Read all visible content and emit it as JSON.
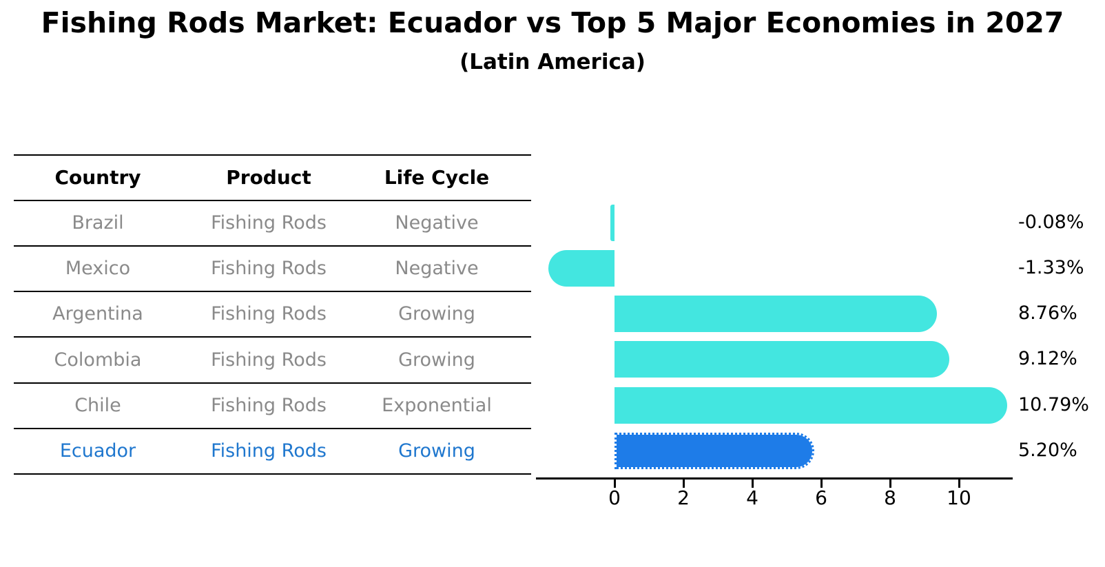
{
  "title": "Fishing Rods Market: Ecuador vs Top 5 Major Economies in 2027",
  "subtitle": "(Latin America)",
  "colors": {
    "bar": "#43e6e0",
    "highlight_bar": "#1e7ce8",
    "highlight_text": "#1f77ce",
    "table_text": "#8a8a8a",
    "heading_text": "#000000"
  },
  "table": {
    "headers": [
      "Country",
      "Product",
      "Life Cycle"
    ],
    "rows": [
      {
        "country": "Brazil",
        "product": "Fishing Rods",
        "life_cycle": "Negative",
        "highlight": false
      },
      {
        "country": "Mexico",
        "product": "Fishing Rods",
        "life_cycle": "Negative",
        "highlight": false
      },
      {
        "country": "Argentina",
        "product": "Fishing Rods",
        "life_cycle": "Growing",
        "highlight": false
      },
      {
        "country": "Colombia",
        "product": "Fishing Rods",
        "life_cycle": "Growing",
        "highlight": false
      },
      {
        "country": "Chile",
        "product": "Fishing Rods",
        "life_cycle": "Exponential",
        "highlight": false
      },
      {
        "country": "Ecuador",
        "product": "Fishing Rods",
        "life_cycle": "Growing",
        "highlight": true
      }
    ]
  },
  "chart_data": {
    "type": "bar",
    "orientation": "horizontal",
    "title": "Fishing Rods Market: Ecuador vs Top 5 Major Economies in 2027 (Latin America)",
    "categories": [
      "Brazil",
      "Mexico",
      "Argentina",
      "Colombia",
      "Chile",
      "Ecuador"
    ],
    "values": [
      -0.08,
      -1.33,
      8.76,
      9.12,
      10.79,
      5.2
    ],
    "value_labels": [
      "-0.08%",
      "-1.33%",
      "8.76%",
      "9.12%",
      "10.79%",
      "5.20%"
    ],
    "x_ticks": [
      0,
      2,
      4,
      6,
      8,
      10
    ],
    "xlim": [
      -2.3,
      11.6
    ],
    "xlabel": "",
    "ylabel": "",
    "grid": false,
    "legend": false,
    "highlight_index": 5,
    "highlight_label": "Ecuador"
  }
}
